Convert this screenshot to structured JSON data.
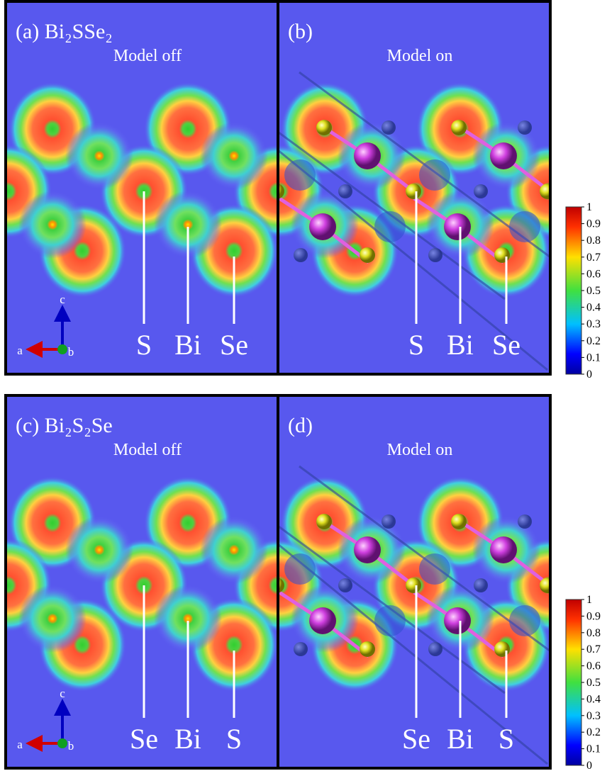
{
  "panels": [
    {
      "title": "(a) Bi₂SSe₂",
      "subtitle": "Model off",
      "atom_labels": [
        "S",
        "Bi",
        "Se"
      ],
      "axes": [
        "a",
        "b",
        "c"
      ],
      "show_model": false
    },
    {
      "title": "(b)",
      "subtitle": "Model on",
      "atom_labels": [
        "S",
        "Bi",
        "Se"
      ],
      "show_model": true
    },
    {
      "title": "(c) Bi₂S₂Se",
      "subtitle": "Model off",
      "atom_labels": [
        "Se",
        "Bi",
        "S"
      ],
      "axes": [
        "a",
        "b",
        "c"
      ],
      "show_model": false
    },
    {
      "title": "(d)",
      "subtitle": "Model on",
      "atom_labels": [
        "Se",
        "Bi",
        "S"
      ],
      "show_model": true
    }
  ],
  "colorbars": [
    {
      "ticks": [
        0,
        0.1,
        0.2,
        0.3,
        0.4,
        0.5,
        0.6,
        0.7,
        0.8,
        0.9,
        1
      ]
    },
    {
      "ticks": [
        0,
        0.1,
        0.2,
        0.3,
        0.4,
        0.5,
        0.6,
        0.7,
        0.8,
        0.9,
        1
      ]
    }
  ]
}
